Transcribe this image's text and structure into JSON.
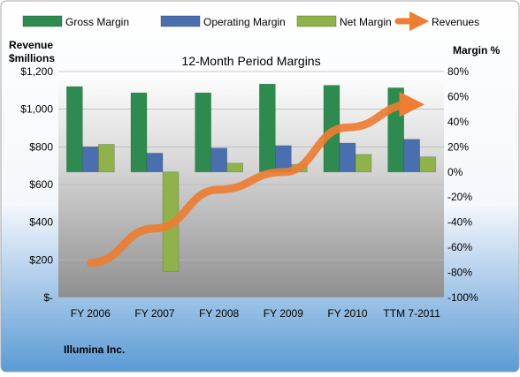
{
  "company_label": "Illumina Inc.",
  "colors": {
    "gross": "#2e8b50",
    "operating": "#4a6fb0",
    "net": "#8fb34a",
    "revenue": "#ed7d31"
  },
  "chart_data": {
    "type": "bar",
    "title": "12-Month Period Margins",
    "left_axis_label": [
      "Revenue",
      "$millions"
    ],
    "right_axis_label": "Margin %",
    "categories": [
      "FY 2006",
      "FY 2007",
      "FY 2008",
      "FY 2009",
      "FY 2010",
      "TTM 7-2011"
    ],
    "left_ylim": [
      0,
      1200
    ],
    "left_ticks": [
      0,
      200,
      400,
      600,
      800,
      1000,
      1200
    ],
    "left_tick_labels": [
      "$-",
      "$200",
      "$400",
      "$600",
      "$800",
      "$1,000",
      "$1,200"
    ],
    "right_ylim": [
      -100,
      80
    ],
    "right_ticks": [
      -100,
      -80,
      -60,
      -40,
      -20,
      0,
      20,
      40,
      60,
      80
    ],
    "right_tick_labels": [
      "-100%",
      "-80%",
      "-60%",
      "-40%",
      "-20%",
      "0%",
      "20%",
      "40%",
      "60%",
      "80%"
    ],
    "legend_position": "top",
    "series": [
      {
        "name": "Gross Margin",
        "axis": "right",
        "kind": "bar",
        "values": [
          68,
          63,
          63,
          70,
          69,
          67
        ]
      },
      {
        "name": "Operating Margin",
        "axis": "right",
        "kind": "bar",
        "values": [
          20,
          15,
          19,
          21,
          23,
          26
        ]
      },
      {
        "name": "Net Margin",
        "axis": "right",
        "kind": "bar",
        "values": [
          22,
          -79,
          7,
          6,
          14,
          12
        ]
      },
      {
        "name": "Revenues",
        "axis": "left",
        "kind": "line",
        "values": [
          184,
          367,
          573,
          666,
          903,
          1025
        ]
      }
    ]
  }
}
